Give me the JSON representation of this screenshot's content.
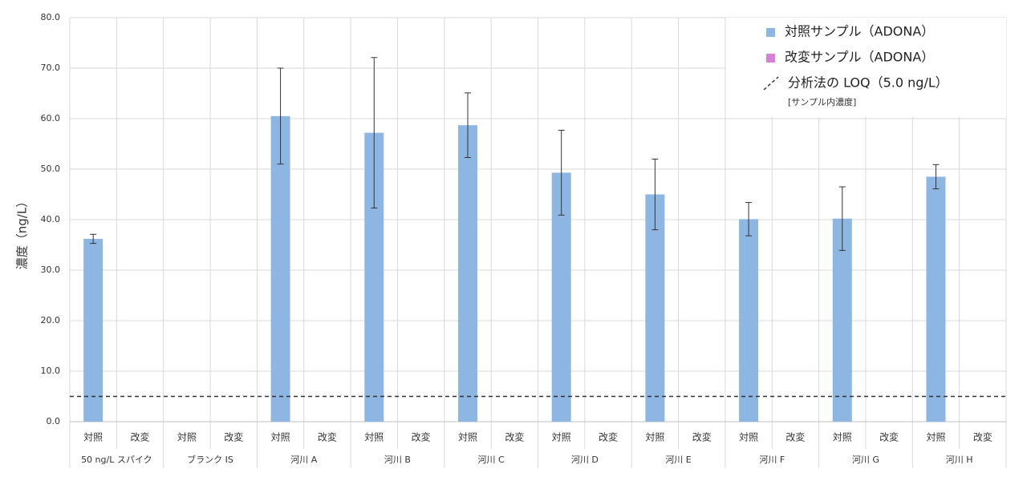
{
  "chart_data": {
    "type": "bar",
    "y_label": "濃度（ng/L）",
    "categories": [
      "50 ng/L スパイク",
      "ブランク IS",
      "河川 A",
      "河川 B",
      "河川 C",
      "河川 D",
      "河川 E",
      "河川 F",
      "河川 G",
      "河川 H"
    ],
    "subcategories": [
      "対照",
      "改変"
    ],
    "series": [
      {
        "name": "対照サンプル（ADONA）",
        "color": "#8db6e3",
        "values": [
          36.2,
          null,
          60.5,
          57.2,
          58.7,
          49.3,
          45.0,
          40.1,
          40.2,
          48.5
        ],
        "errors": [
          0.9,
          null,
          9.5,
          14.9,
          6.4,
          8.4,
          7.0,
          3.3,
          6.3,
          2.4
        ]
      },
      {
        "name": "改変サンプル（ADONA）",
        "color": "#d87fd8",
        "values": [
          null,
          null,
          null,
          null,
          null,
          null,
          null,
          null,
          null,
          null
        ]
      }
    ],
    "reference_lines": [
      {
        "value": 5.0,
        "label": "分析法の LOQ（5.0 ng/L）",
        "note": "[サンプル内濃度]",
        "style": "dashed",
        "color": "#333333"
      }
    ],
    "ylim": [
      0,
      80
    ],
    "yticks": [
      {
        "value": 0,
        "label": "0.0"
      },
      {
        "value": 10,
        "label": "10.0"
      },
      {
        "value": 20,
        "label": "20.0"
      },
      {
        "value": 30,
        "label": "30.0"
      },
      {
        "value": 40,
        "label": "40.0"
      },
      {
        "value": 50,
        "label": "50.0"
      },
      {
        "value": 60,
        "label": "60.0"
      },
      {
        "value": 70,
        "label": "70.0"
      },
      {
        "value": 80,
        "label": "80.0"
      }
    ],
    "grid": true,
    "legend": "upper right"
  }
}
